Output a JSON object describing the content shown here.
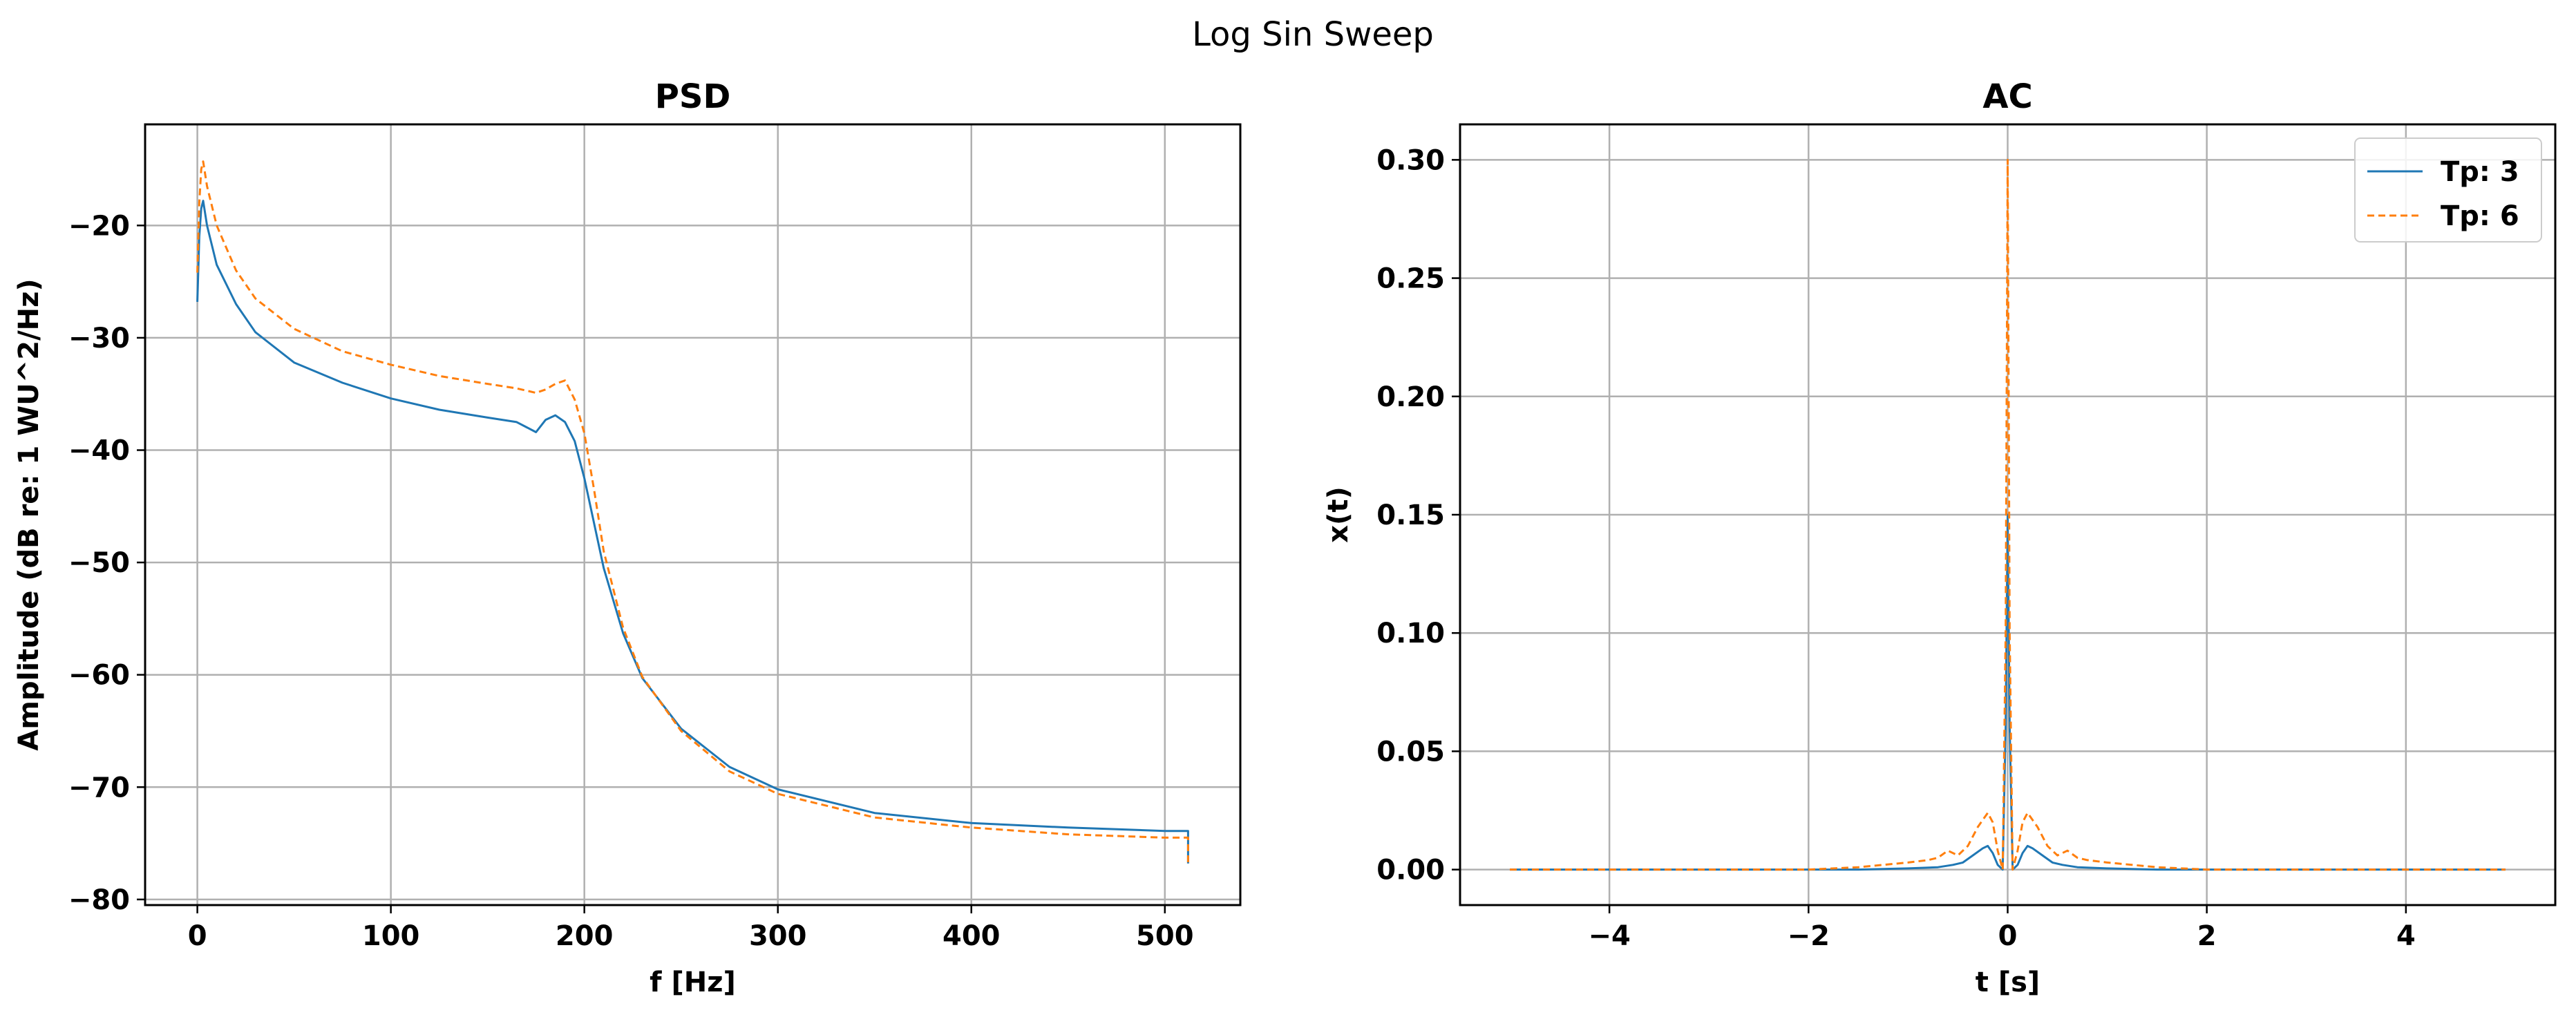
{
  "figure": {
    "suptitle": "Log Sin Sweep"
  },
  "colors": {
    "tp3": "#1f77b4",
    "tp6": "#ff7f0e",
    "grid": "#b0b0b0",
    "axis": "#000000"
  },
  "chart_data": [
    {
      "type": "line",
      "title": "PSD",
      "xlabel": "f [Hz]",
      "ylabel": "Amplitude (dB re: 1 WU^2/Hz)",
      "xlim": [
        -27,
        539
      ],
      "ylim": [
        -80.5,
        -11
      ],
      "xticks": [
        0,
        100,
        200,
        300,
        400,
        500
      ],
      "xtick_labels": [
        "0",
        "100",
        "200",
        "300",
        "400",
        "500"
      ],
      "yticks": [
        -80,
        -70,
        -60,
        -50,
        -40,
        -30,
        -20
      ],
      "ytick_labels": [
        "−80",
        "−70",
        "−60",
        "−50",
        "−40",
        "−30",
        "−20"
      ],
      "grid": true,
      "series": [
        {
          "name": "Tp: 3",
          "style": "solid",
          "x": [
            0,
            1,
            2,
            3,
            5,
            10,
            20,
            30,
            50,
            75,
            100,
            125,
            150,
            165,
            175,
            180,
            185,
            190,
            195,
            200,
            205,
            210,
            220,
            230,
            250,
            275,
            300,
            350,
            400,
            450,
            500,
            512,
            512
          ],
          "y": [
            -26.8,
            -21,
            -18.5,
            -17.8,
            -20,
            -23.5,
            -27,
            -29.5,
            -32.2,
            -34,
            -35.4,
            -36.4,
            -37.1,
            -37.5,
            -38.4,
            -37.3,
            -36.9,
            -37.5,
            -39.2,
            -42.5,
            -46.5,
            -50.5,
            -56.3,
            -60.3,
            -64.8,
            -68.2,
            -70.2,
            -72.3,
            -73.2,
            -73.6,
            -73.9,
            -73.9,
            -76.8
          ]
        },
        {
          "name": "Tp: 6",
          "style": "dashed",
          "x": [
            0,
            1,
            2,
            3,
            5,
            10,
            20,
            30,
            50,
            75,
            100,
            125,
            150,
            165,
            175,
            180,
            185,
            190,
            195,
            200,
            205,
            210,
            220,
            230,
            250,
            275,
            300,
            350,
            400,
            450,
            500,
            512,
            512
          ],
          "y": [
            -24.2,
            -18,
            -15,
            -14.3,
            -16.5,
            -20,
            -24,
            -26.5,
            -29.2,
            -31.2,
            -32.4,
            -33.4,
            -34.1,
            -34.5,
            -34.9,
            -34.6,
            -34.1,
            -33.8,
            -35.5,
            -38.5,
            -43.5,
            -49,
            -55.8,
            -60.2,
            -65,
            -68.6,
            -70.6,
            -72.7,
            -73.6,
            -74.2,
            -74.5,
            -74.5,
            -76.8
          ]
        }
      ]
    },
    {
      "type": "line",
      "title": "AC",
      "xlabel": "t [s]",
      "ylabel": "x(t)",
      "xlim": [
        -5.5,
        5.5
      ],
      "ylim": [
        -0.015,
        0.315
      ],
      "xticks": [
        -4,
        -2,
        0,
        2,
        4
      ],
      "xtick_labels": [
        "−4",
        "−2",
        "0",
        "2",
        "4"
      ],
      "yticks": [
        0,
        0.05,
        0.1,
        0.15,
        0.2,
        0.25,
        0.3
      ],
      "ytick_labels": [
        "0.00",
        "0.05",
        "0.10",
        "0.15",
        "0.20",
        "0.25",
        "0.30"
      ],
      "grid": true,
      "legend": {
        "location": "upper right",
        "entries": [
          "Tp: 3",
          "Tp: 6"
        ]
      },
      "series": [
        {
          "name": "Tp: 3",
          "style": "solid",
          "x": [
            -5,
            -1.5,
            -1.0,
            -0.7,
            -0.55,
            -0.45,
            -0.35,
            -0.25,
            -0.2,
            -0.15,
            -0.1,
            -0.05,
            -0.02,
            0,
            0.02,
            0.05,
            0.1,
            0.15,
            0.2,
            0.25,
            0.35,
            0.45,
            0.55,
            0.7,
            1.0,
            1.5,
            5
          ],
          "y": [
            0,
            0,
            0.0005,
            0.001,
            0.002,
            0.003,
            0.006,
            0.009,
            0.01,
            0.007,
            0.002,
            0,
            0.06,
            0.15,
            0.06,
            0,
            0.002,
            0.007,
            0.01,
            0.009,
            0.006,
            0.003,
            0.002,
            0.001,
            0.0005,
            0,
            0
          ]
        },
        {
          "name": "Tp: 6",
          "style": "dashed",
          "x": [
            -5,
            -2,
            -1.5,
            -1.0,
            -0.8,
            -0.7,
            -0.6,
            -0.5,
            -0.4,
            -0.3,
            -0.2,
            -0.15,
            -0.1,
            -0.05,
            -0.02,
            0,
            0.02,
            0.05,
            0.1,
            0.15,
            0.2,
            0.3,
            0.4,
            0.5,
            0.6,
            0.7,
            0.8,
            1.0,
            1.5,
            2,
            5
          ],
          "y": [
            0,
            0,
            0.001,
            0.003,
            0.004,
            0.005,
            0.008,
            0.006,
            0.01,
            0.018,
            0.024,
            0.02,
            0.008,
            0,
            0.1,
            0.3,
            0.1,
            0,
            0.008,
            0.02,
            0.024,
            0.018,
            0.01,
            0.006,
            0.008,
            0.005,
            0.004,
            0.003,
            0.001,
            0,
            0
          ]
        }
      ]
    }
  ]
}
